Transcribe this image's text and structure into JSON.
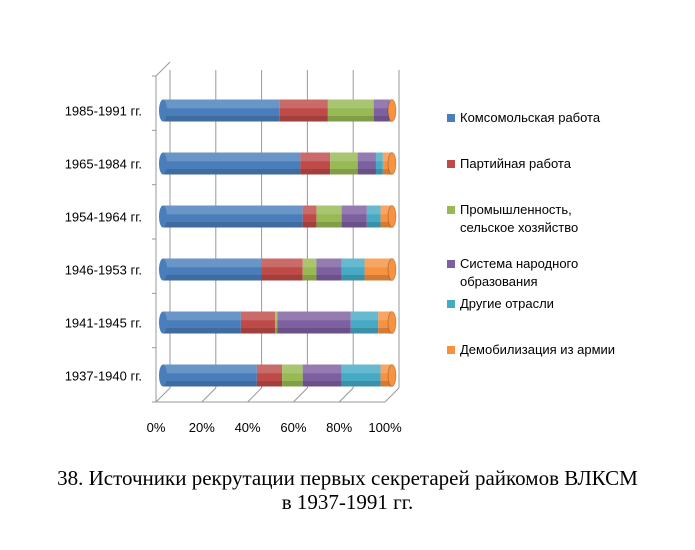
{
  "chart_data": {
    "type": "bar",
    "stacked": "100%",
    "title": "38. Источники рекрутации первых секретарей райкомов ВЛКСМ в 1937-1991 гг.",
    "title_lines": [
      "38. Источники рекрутации первых секретарей райкомов ВЛКСМ",
      "в 1937-1991 гг."
    ],
    "categories": [
      "1985-1991  гг.",
      "1965-1984  гг.",
      "1954-1964  гг.",
      "1946-1953  гг.",
      "1941-1945  гг.",
      "1937-1940  гг."
    ],
    "xticks": [
      "0%",
      "20%",
      "40%",
      "60%",
      "80%",
      "100%"
    ],
    "xlim": [
      0,
      100
    ],
    "legend_position": "right",
    "series": [
      {
        "name": "Комсомольская  работа",
        "color": "#4a7ebb",
        "values": [
          51,
          60,
          61,
          43,
          34,
          41
        ]
      },
      {
        "name": "Партийная  работа",
        "color": "#be4b48",
        "values": [
          21,
          13,
          6,
          18,
          15,
          11
        ]
      },
      {
        "name": "Промышленность, сельское хозяйство",
        "lines": [
          "Промышленность,",
          "сельское хозяйство"
        ],
        "color": "#98b954",
        "values": [
          20,
          12,
          11,
          6,
          1,
          9
        ]
      },
      {
        "name": "Система народного образования",
        "lines": [
          "Система народного",
          "образования"
        ],
        "color": "#7d60a0",
        "values": [
          7,
          8,
          11,
          11,
          32,
          17
        ]
      },
      {
        "name": "Другие отрасли",
        "color": "#46aac5",
        "values": [
          0,
          3,
          6,
          10,
          12,
          17
        ]
      },
      {
        "name": "Демобилизация  из армии",
        "color": "#f69240",
        "values": [
          1,
          4,
          5,
          12,
          6,
          5
        ]
      }
    ]
  }
}
